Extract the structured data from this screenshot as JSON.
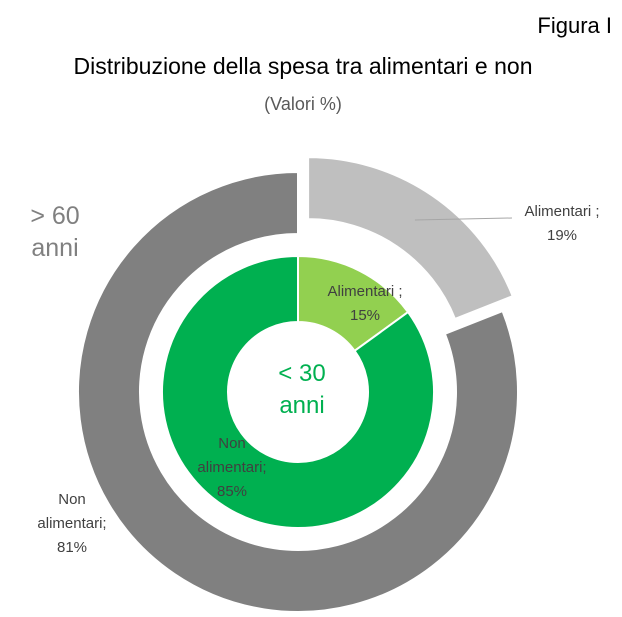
{
  "chart_data": {
    "type": "donut",
    "header": "Figura I",
    "title": "Distribuzione della spesa tra alimentari e non",
    "subtitle": "(Valori %)",
    "series": [
      {
        "name": "> 60 anni",
        "color": "#808080",
        "categories": [
          "Alimentari ;",
          "Non alimentari;"
        ],
        "values": [
          19,
          81
        ],
        "value_labels": [
          "19%",
          "81%"
        ],
        "colors": [
          "#bfbfbf",
          "#808080"
        ]
      },
      {
        "name": "< 30 anni",
        "color": "#00b050",
        "categories": [
          "Alimentari ;",
          "Non alimentari;"
        ],
        "values": [
          15,
          85
        ],
        "value_labels": [
          "15%",
          "85%"
        ],
        "colors": [
          "#92d050",
          "#00b050"
        ]
      }
    ]
  }
}
